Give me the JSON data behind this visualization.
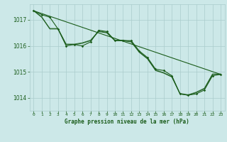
{
  "title": "Graphe pression niveau de la mer (hPa)",
  "x_labels": [
    "0",
    "1",
    "2",
    "3",
    "4",
    "5",
    "6",
    "7",
    "8",
    "9",
    "10",
    "11",
    "12",
    "13",
    "14",
    "15",
    "16",
    "17",
    "18",
    "19",
    "20",
    "21",
    "22",
    "23"
  ],
  "xlim": [
    -0.5,
    23.5
  ],
  "ylim": [
    1013.5,
    1017.6
  ],
  "yticks": [
    1014,
    1015,
    1016,
    1017
  ],
  "background_color": "#cce8e8",
  "grid_color": "#aacccc",
  "line_color": "#1a5c1a",
  "series": {
    "main": [
      1017.35,
      1017.2,
      1017.1,
      1016.65,
      1016.0,
      1016.05,
      1016.0,
      1016.15,
      1016.6,
      1016.55,
      1016.2,
      1016.2,
      1016.2,
      1015.8,
      1015.55,
      1015.1,
      1015.05,
      1014.85,
      1014.15,
      1014.1,
      1014.15,
      1014.3,
      1014.85,
      1014.9
    ],
    "smooth": [
      1017.35,
      1017.1,
      1016.65,
      1016.65,
      1016.05,
      1016.05,
      1016.1,
      1016.2,
      1016.55,
      1016.5,
      1016.2,
      1016.2,
      1016.15,
      1015.75,
      1015.5,
      1015.05,
      1014.95,
      1014.8,
      1014.15,
      1014.1,
      1014.2,
      1014.35,
      1014.9,
      1014.9
    ],
    "trend_x": [
      0,
      23
    ],
    "trend_y": [
      1017.35,
      1014.9
    ]
  }
}
